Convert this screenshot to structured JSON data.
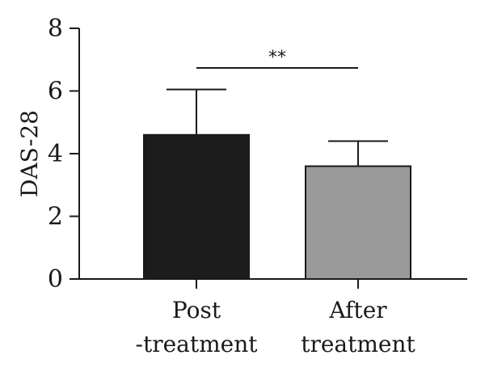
{
  "chart_data": {
    "type": "bar",
    "title": "",
    "xlabel": "",
    "ylabel": "DAS-28",
    "ylim": [
      0,
      8
    ],
    "yticks": [
      0,
      2,
      4,
      6,
      8
    ],
    "categories": [
      [
        "Post",
        "-treatment"
      ],
      [
        "After",
        "treatment"
      ]
    ],
    "values": [
      4.6,
      3.6
    ],
    "error_upper": [
      6.05,
      4.4
    ],
    "bar_colors": [
      "#1c1c1c",
      "#9a9a9a"
    ],
    "significance": {
      "label": "**",
      "between": [
        0,
        1
      ]
    },
    "grid": false,
    "legend": "none"
  }
}
